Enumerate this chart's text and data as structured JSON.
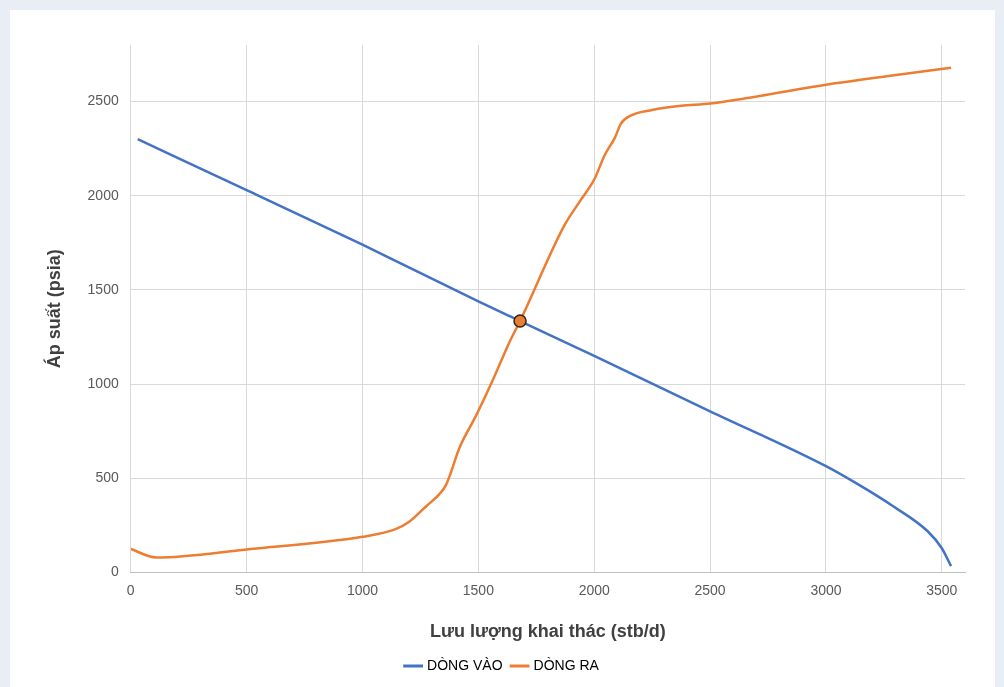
{
  "chart_data": {
    "type": "line",
    "xlabel": "Lưu lượng khai thác (stb/d)",
    "ylabel": "Áp suất (psia)",
    "xlim": [
      0,
      3600
    ],
    "xticks": [
      0,
      500,
      1000,
      1500,
      2000,
      2500,
      3000,
      3500
    ],
    "ylim": [
      0,
      2800
    ],
    "yticks": [
      0,
      500,
      1000,
      1500,
      2000,
      2500
    ],
    "grid": true,
    "legend": "bottom",
    "line_style": "solid",
    "series": [
      {
        "name": "DÒNG VÀO",
        "color": "#4472c4",
        "marker": "none",
        "x": [
          30,
          500,
          1000,
          1500,
          1680,
          2000,
          2500,
          3000,
          3150,
          3290,
          3440,
          3500,
          3540
        ],
        "values": [
          2300,
          2030,
          1740,
          1440,
          1335,
          1150,
          856,
          565,
          460,
          352,
          218,
          129,
          34
        ]
      },
      {
        "name": "DÒNG RA",
        "color": "#ed7d31",
        "marker": "none",
        "x": [
          0,
          110,
          500,
          1000,
          1140,
          1200,
          1275,
          1330,
          1360,
          1420,
          1490,
          1565,
          1635,
          1680,
          1870,
          1940,
          2000,
          2045,
          2090,
          2115,
          2160,
          2250,
          2375,
          2500,
          3000,
          3540
        ],
        "values": [
          125,
          80,
          123,
          190,
          229,
          268,
          352,
          414,
          464,
          666,
          833,
          1029,
          1225,
          1335,
          1840,
          1974,
          2086,
          2215,
          2310,
          2383,
          2427,
          2455,
          2477,
          2489,
          2589,
          2679
        ]
      },
      {
        "type": "scatter",
        "color": "#ed7d31",
        "marker": "circle",
        "x": [
          1680
        ],
        "values": [
          1335
        ]
      }
    ]
  }
}
